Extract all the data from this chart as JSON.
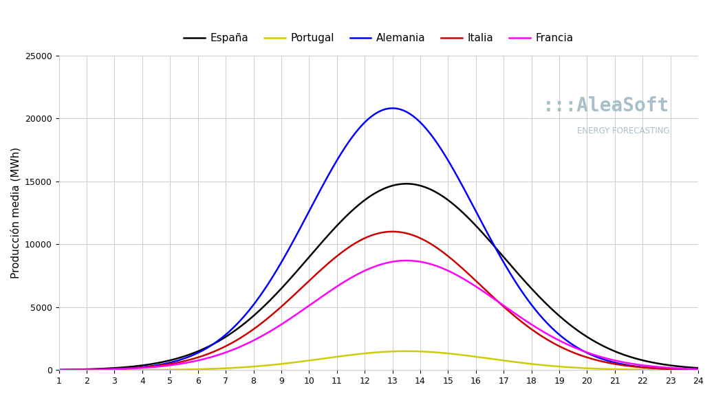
{
  "title": "",
  "ylabel": "Producción media (MWh)",
  "xlabel": "",
  "x_ticks": [
    1,
    2,
    3,
    4,
    5,
    6,
    7,
    8,
    9,
    10,
    11,
    12,
    13,
    14,
    15,
    16,
    17,
    18,
    19,
    20,
    21,
    22,
    23,
    24
  ],
  "ylim": [
    0,
    25000
  ],
  "xlim": [
    1,
    24
  ],
  "grid_color": "#cccccc",
  "background_color": "#ffffff",
  "legend": [
    "España",
    "Portugal",
    "Alemania",
    "Italia",
    "Francia"
  ],
  "colors": [
    "#000000",
    "#cccc00",
    "#0000ff",
    "#cc0000",
    "#ff00ff"
  ],
  "watermark_text1": ":::AleaSoft",
  "watermark_text2": "ENERGY FORECASTING",
  "watermark_color": "#a8bfcc",
  "curves": {
    "España": {
      "mean": 13.5,
      "std": 3.5,
      "peak": 14800
    },
    "Portugal": {
      "mean": 13.5,
      "std": 3.0,
      "peak": 1500
    },
    "Alemania": {
      "mean": 13.0,
      "std": 3.0,
      "peak": 20800
    },
    "Italia": {
      "mean": 13.0,
      "std": 3.2,
      "peak": 11000
    },
    "Francia": {
      "mean": 13.5,
      "std": 3.4,
      "peak": 8700
    }
  }
}
